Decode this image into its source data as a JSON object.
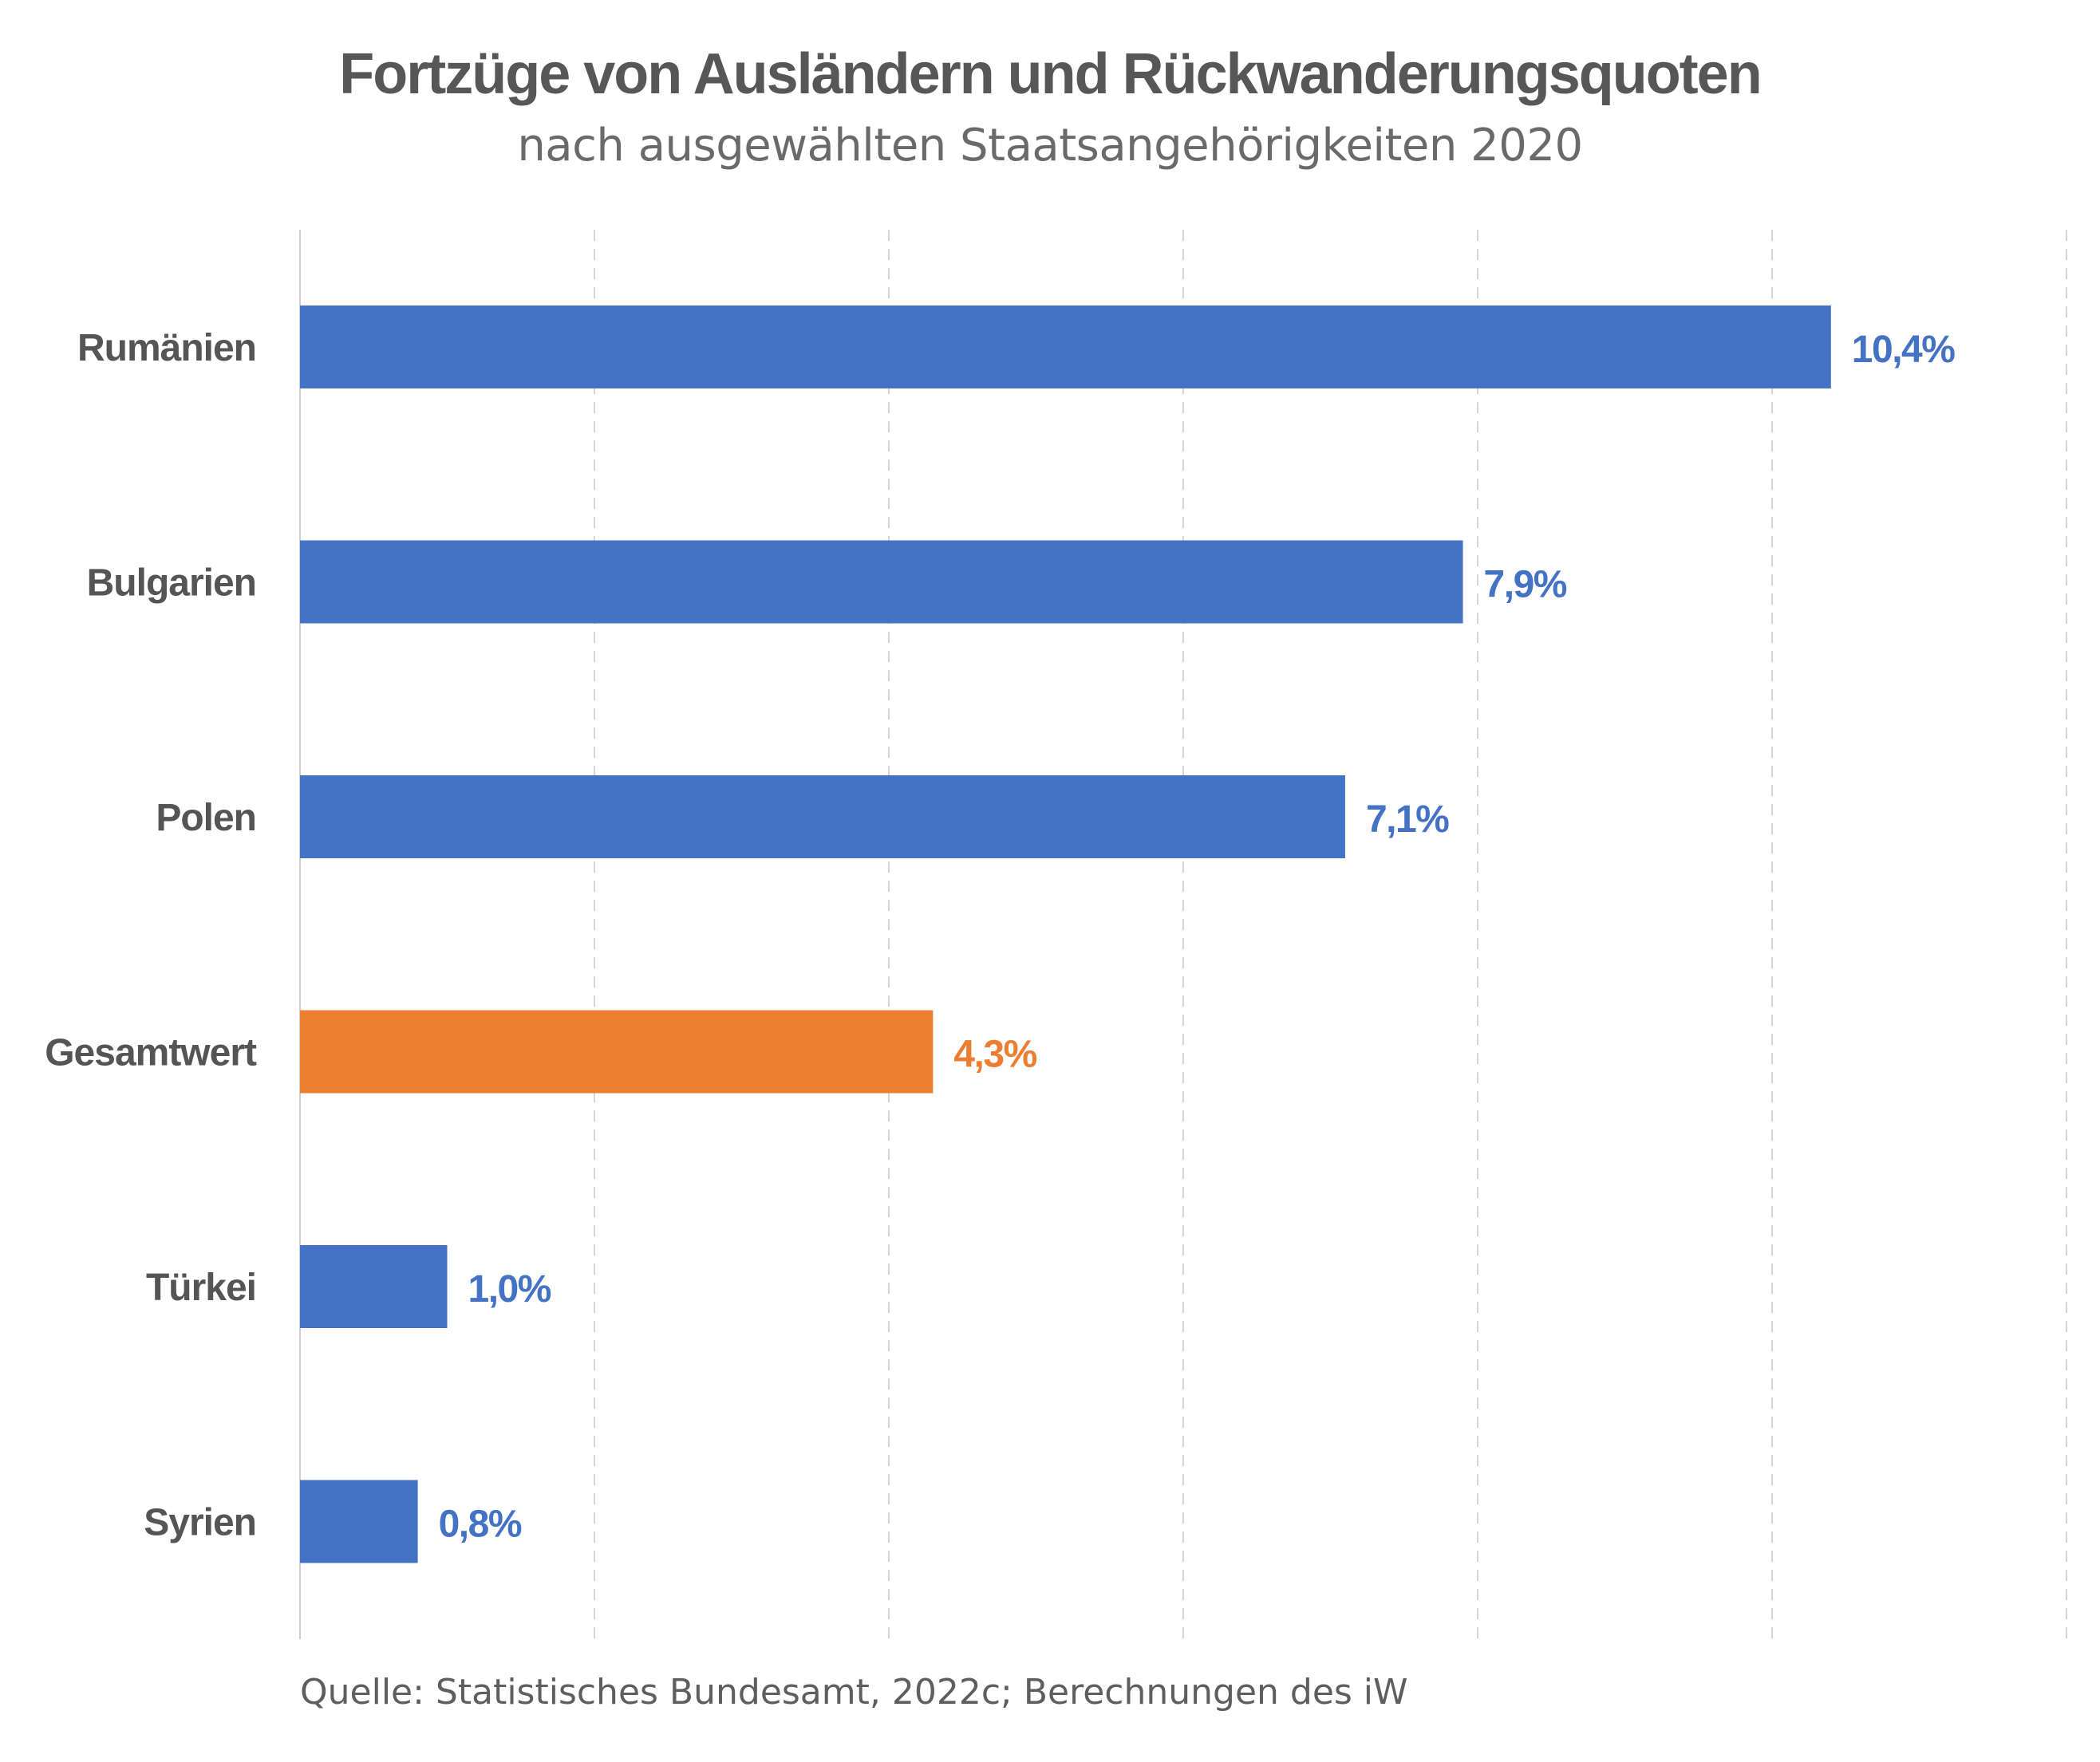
{
  "chart_data": {
    "type": "bar",
    "orientation": "horizontal",
    "title": "Fortzüge von Ausländern und Rückwanderungsquoten",
    "subtitle": "nach ausgewählten Staatsangehörigkeiten 2020",
    "categories": [
      "Rumänien",
      "Bulgarien",
      "Polen",
      "Gesamtwert",
      "Türkei",
      "Syrien"
    ],
    "values": [
      10.4,
      7.9,
      7.1,
      4.3,
      1.0,
      0.8
    ],
    "value_labels": [
      "10,4%",
      "7,9%",
      "7,1%",
      "4,3%",
      "1,0%",
      "0,8%"
    ],
    "highlight_category": "Gesamtwert",
    "xlim": [
      0,
      12
    ],
    "x_gridline_step": 2,
    "grid": "vertical dashed",
    "colors": {
      "bar": "#4472C4",
      "highlight": "#ED7D31",
      "grid": "#d6d6d6",
      "text": "#555555"
    },
    "source": "Quelle: Statistisches Bundesamt, 2022c; Berechnungen des iW"
  }
}
